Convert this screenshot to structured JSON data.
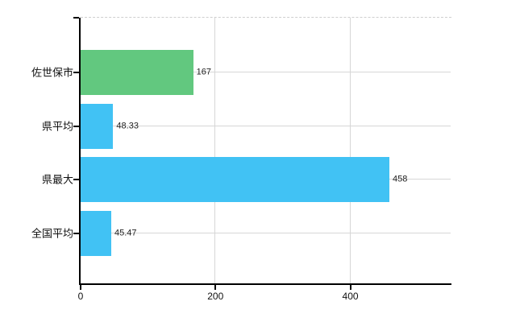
{
  "chart_data": {
    "type": "bar",
    "orientation": "horizontal",
    "categories": [
      "佐世保市",
      "県平均",
      "県最大",
      "全国平均"
    ],
    "values": [
      167,
      48.33,
      458,
      45.47
    ],
    "value_labels": [
      "167",
      "48.33",
      "458",
      "45.47"
    ],
    "bar_colors": [
      "#62c87f",
      "#41c2f4",
      "#41c2f4",
      "#41c2f4"
    ],
    "x_ticks": [
      0,
      200,
      400
    ],
    "x_tick_labels": [
      "0",
      "200",
      "400"
    ],
    "xlim": [
      0,
      550
    ],
    "grid": true,
    "legend": false,
    "background_color": "#ffffff",
    "axis_color": "#000000",
    "gridline_color": "#d6d6d6"
  }
}
